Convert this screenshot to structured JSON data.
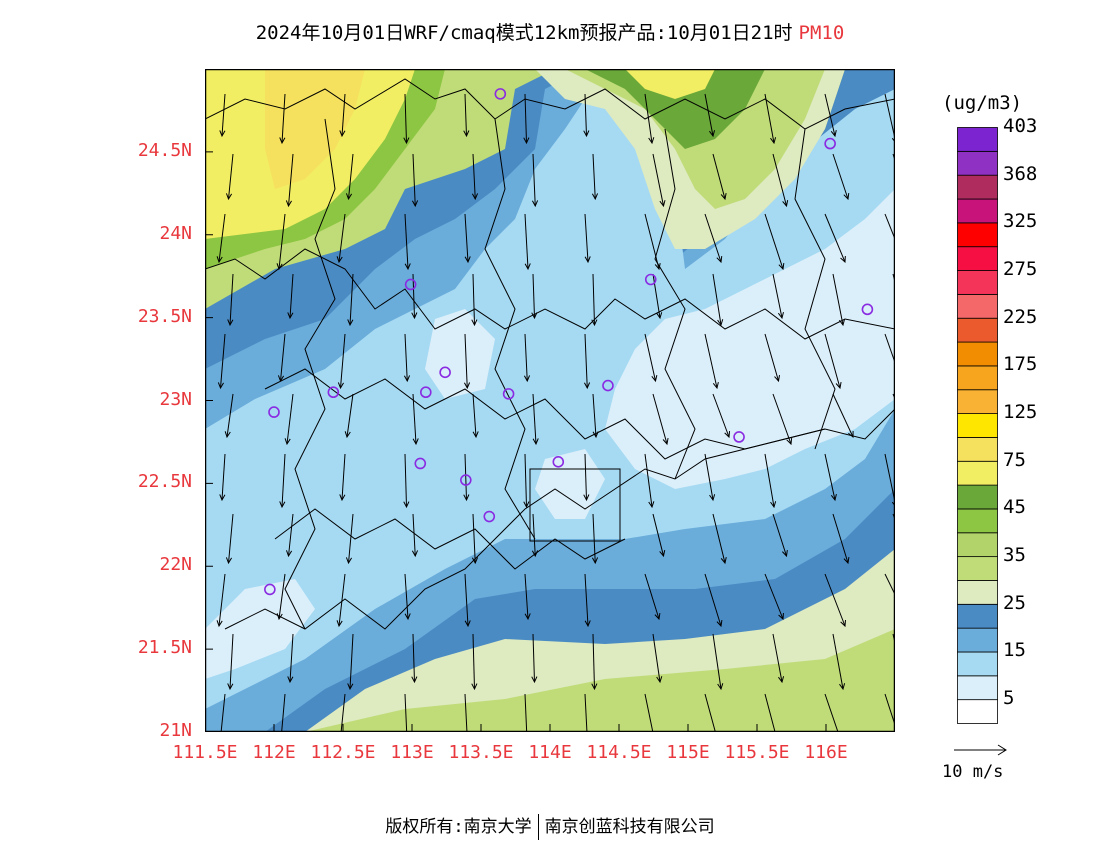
{
  "header": {
    "title": "2024年10月01日WRF/cmaq模式12km预报产品:10月01日21时",
    "pollutant": "PM10"
  },
  "map": {
    "lon_range": [
      111.5,
      116.5
    ],
    "lat_range": [
      21.0,
      25.0
    ],
    "y_ticks": [
      {
        "value": 21.0,
        "label": "21N"
      },
      {
        "value": 21.5,
        "label": "21.5N"
      },
      {
        "value": 22.0,
        "label": "22N"
      },
      {
        "value": 22.5,
        "label": "22.5N"
      },
      {
        "value": 23.0,
        "label": "23N"
      },
      {
        "value": 23.5,
        "label": "23.5N"
      },
      {
        "value": 24.0,
        "label": "24N"
      },
      {
        "value": 24.5,
        "label": "24.5N"
      }
    ],
    "x_ticks": [
      {
        "value": 111.5,
        "label": "111.5E"
      },
      {
        "value": 112.0,
        "label": "112E"
      },
      {
        "value": 112.5,
        "label": "112.5E"
      },
      {
        "value": 113.0,
        "label": "113E"
      },
      {
        "value": 113.5,
        "label": "113.5E"
      },
      {
        "value": 114.0,
        "label": "114E"
      },
      {
        "value": 114.5,
        "label": "114.5E"
      },
      {
        "value": 115.0,
        "label": "115E"
      },
      {
        "value": 115.5,
        "label": "115.5E"
      },
      {
        "value": 116.0,
        "label": "116E"
      }
    ],
    "stations": [
      [
        113.64,
        24.85
      ],
      [
        116.03,
        24.55
      ],
      [
        114.73,
        23.73
      ],
      [
        116.3,
        23.55
      ],
      [
        112.99,
        23.7
      ],
      [
        112.43,
        23.05
      ],
      [
        112.0,
        22.93
      ],
      [
        113.1,
        23.05
      ],
      [
        113.24,
        23.17
      ],
      [
        113.7,
        23.04
      ],
      [
        114.42,
        23.09
      ],
      [
        113.06,
        22.62
      ],
      [
        113.39,
        22.52
      ],
      [
        114.06,
        22.63
      ],
      [
        113.56,
        22.3
      ],
      [
        115.37,
        22.78
      ],
      [
        111.97,
        21.86
      ]
    ],
    "colors": {
      "c5": "#dbeffa",
      "c15": "#a6daf3",
      "c25a": "#6aacda",
      "c25b": "#4a8bc4",
      "c35a": "#deeac0",
      "c35b": "#c0dc78",
      "c45a": "#8dc642",
      "c45b": "#6aa839",
      "c75": "#f2ee63",
      "c125": "#ffe600"
    }
  },
  "legend": {
    "unit": "(ug/m3)",
    "bins": [
      "#ffffff",
      "#dbeffa",
      "#a6daf3",
      "#6aacda",
      "#4a8bc4",
      "#deeac0",
      "#c0dc78",
      "#b2d26a",
      "#8dc642",
      "#6aa839",
      "#f2ee63",
      "#f5e15e",
      "#ffe600",
      "#f9b233",
      "#f7a51e",
      "#f28c00",
      "#ea5a2c",
      "#f4686a",
      "#f5345a",
      "#f60f42",
      "#fe0000",
      "#c8137a",
      "#ae2d5e",
      "#8f31c3",
      "#7c24d0"
    ],
    "labels": [
      "5",
      "15",
      "25",
      "35",
      "45",
      "75",
      "125",
      "175",
      "225",
      "275",
      "325",
      "368",
      "403"
    ]
  },
  "wind": {
    "scale_label": "10 m/s"
  },
  "footer": {
    "copyright": "版权所有:南京大学",
    "company": "南京创蓝科技有限公司"
  }
}
